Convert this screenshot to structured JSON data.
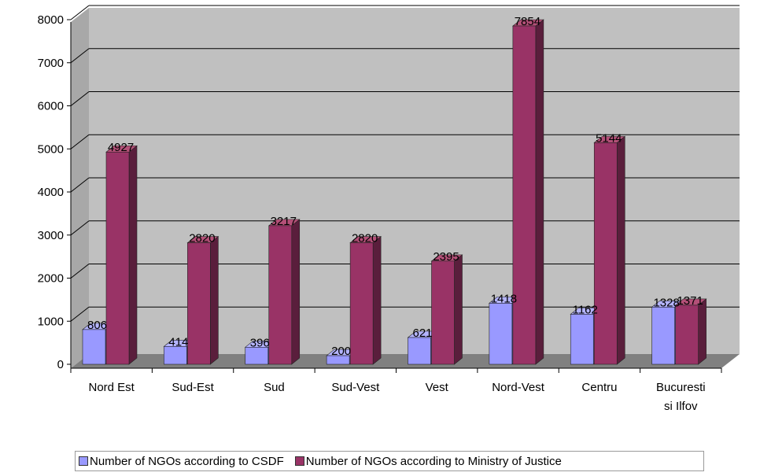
{
  "chart_data": {
    "type": "bar",
    "categories": [
      "Nord Est",
      "Sud-Est",
      "Sud",
      "Sud-Vest",
      "Vest",
      "Nord-Vest",
      "Centru",
      "Bucuresti si Ilfov"
    ],
    "category_lines": [
      [
        "Nord Est"
      ],
      [
        "Sud-Est"
      ],
      [
        "Sud"
      ],
      [
        "Sud-Vest"
      ],
      [
        "Vest"
      ],
      [
        "Nord-Vest"
      ],
      [
        "Centru"
      ],
      [
        "Bucuresti",
        "si Ilfov"
      ]
    ],
    "series": [
      {
        "name": "Number of NGOs according to CSDF",
        "values": [
          806,
          414,
          396,
          200,
          621,
          1418,
          1162,
          1328
        ],
        "labels": [
          "806",
          "414",
          "396",
          "200",
          "621",
          "1418",
          "1162",
          "1328"
        ]
      },
      {
        "name": "Number of NGOs according to Ministry of Justice",
        "values": [
          4927,
          2820,
          3217,
          2820,
          2395,
          7854,
          5144,
          1371
        ],
        "labels": [
          "4927",
          "2820",
          "3217",
          "2820",
          "2395",
          "7854",
          "5144",
          "1371"
        ]
      }
    ],
    "yticks": [
      "0",
      "1000",
      "2000",
      "3000",
      "4000",
      "5000",
      "6000",
      "7000",
      "8000"
    ],
    "ylim": [
      0,
      8000
    ],
    "grid": true,
    "legend_position": "bottom",
    "title": "",
    "xlabel": "",
    "ylabel": ""
  },
  "colors": {
    "wall": "#c0c0c0",
    "floor": "#808080",
    "csdf_front": "#9999ff",
    "csdf_side": "#6464b4",
    "csdf_top": "#b4b4ff",
    "moj_front": "#993366",
    "moj_side": "#5a1e3c",
    "moj_top": "#b45078"
  }
}
